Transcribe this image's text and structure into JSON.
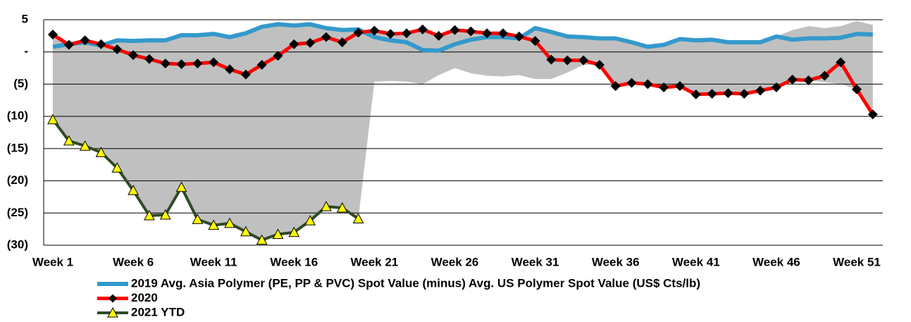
{
  "chart_data": {
    "type": "line",
    "categories": [
      "Week 1",
      null,
      null,
      null,
      null,
      "Week 6",
      null,
      null,
      null,
      null,
      "Week 11",
      null,
      null,
      null,
      null,
      "Week 16",
      null,
      null,
      null,
      null,
      "Week 21",
      null,
      null,
      null,
      null,
      "Week 26",
      null,
      null,
      null,
      null,
      "Week 31",
      null,
      null,
      null,
      null,
      "Week 36",
      null,
      null,
      null,
      null,
      "Week 41",
      null,
      null,
      null,
      null,
      "Week 46",
      null,
      null,
      null,
      null,
      "Week 51",
      null
    ],
    "ylim": [
      -30,
      5
    ],
    "yticks": [
      {
        "value": 5,
        "label": "5"
      },
      {
        "value": 0,
        "label": "-"
      },
      {
        "value": -5,
        "label": "(5)"
      },
      {
        "value": -10,
        "label": "(10)"
      },
      {
        "value": -15,
        "label": "(15)"
      },
      {
        "value": -20,
        "label": "(20)"
      },
      {
        "value": -25,
        "label": "(25)"
      },
      {
        "value": -30,
        "label": "(30)"
      }
    ],
    "grid": true,
    "band": {
      "color": "#c0c0c0",
      "low": [
        -10.5,
        -13.8,
        -14.6,
        -15.6,
        -18.0,
        -21.5,
        -25.4,
        -25.3,
        -21.0,
        -26.0,
        -26.9,
        -26.6,
        -27.9,
        -29.2,
        -28.3,
        -28.0,
        -26.2,
        -24.0,
        -24.2,
        -25.9,
        -4.6,
        -4.5,
        -4.6,
        -5.0,
        -3.6,
        -2.5,
        -3.3,
        -3.7,
        -3.8,
        -3.6,
        -4.2,
        -4.2,
        -3.2,
        -2.0,
        -2.0,
        -5.3,
        -4.8,
        -5.0,
        -5.5,
        -5.3,
        -6.6,
        -6.5,
        -6.4,
        -6.5,
        -6.0,
        -5.5,
        -4.3,
        -4.4,
        -4.7,
        -5.0,
        -5.8,
        -9.7
      ],
      "high": [
        2.7,
        1.5,
        1.8,
        1.2,
        1.8,
        1.7,
        1.8,
        1.8,
        2.6,
        2.6,
        2.8,
        2.3,
        2.9,
        3.9,
        4.3,
        4.1,
        4.3,
        3.7,
        3.4,
        3.5,
        3.3,
        2.8,
        2.9,
        3.5,
        2.5,
        3.4,
        3.2,
        2.9,
        2.9,
        2.4,
        3.7,
        3.1,
        2.4,
        2.3,
        2.1,
        2.1,
        1.5,
        0.8,
        1.1,
        2.0,
        1.8,
        1.9,
        1.5,
        1.5,
        1.5,
        2.4,
        3.4,
        4.0,
        3.7,
        4.0,
        4.8,
        4.2
      ]
    },
    "series": [
      {
        "name": "2019 Avg. Asia Polymer (PE, PP & PVC) Spot Value (minus) Avg. US Polymer Spot Value (US$ Cts/lb)",
        "color": "#3399cc",
        "marker": null,
        "values": [
          0.8,
          1.2,
          1.5,
          1.0,
          1.8,
          1.7,
          1.8,
          1.8,
          2.6,
          2.6,
          2.8,
          2.3,
          2.9,
          3.9,
          4.3,
          4.1,
          4.3,
          3.7,
          3.4,
          3.5,
          2.3,
          1.8,
          1.5,
          0.3,
          0.2,
          1.2,
          1.9,
          2.3,
          2.3,
          2.1,
          3.7,
          3.1,
          2.4,
          2.3,
          2.1,
          2.1,
          1.5,
          0.8,
          1.1,
          2.0,
          1.8,
          1.9,
          1.5,
          1.5,
          1.5,
          2.4,
          1.9,
          2.1,
          2.1,
          2.2,
          2.8,
          2.7
        ]
      },
      {
        "name": "2020",
        "color": "#ff0000",
        "marker": "diamond",
        "marker_color": "#000000",
        "values": [
          2.7,
          1.1,
          1.8,
          1.2,
          0.4,
          -0.5,
          -1.1,
          -1.8,
          -1.9,
          -1.8,
          -1.6,
          -2.7,
          -3.5,
          -2.0,
          -0.6,
          1.2,
          1.4,
          2.3,
          1.5,
          3.0,
          3.3,
          2.8,
          2.9,
          3.5,
          2.5,
          3.4,
          3.2,
          2.9,
          2.9,
          2.4,
          1.7,
          -1.2,
          -1.3,
          -1.3,
          -2.0,
          -5.3,
          -4.8,
          -5.0,
          -5.5,
          -5.3,
          -6.6,
          -6.5,
          -6.4,
          -6.5,
          -6.0,
          -5.5,
          -4.3,
          -4.4,
          -3.7,
          -1.6,
          -5.8,
          -9.7
        ]
      },
      {
        "name": "2021 YTD",
        "color": "#2f4a25",
        "marker": "triangle",
        "marker_color": "#ffff00",
        "values": [
          -10.5,
          -13.8,
          -14.6,
          -15.6,
          -18.0,
          -21.5,
          -25.4,
          -25.3,
          -21.0,
          -26.0,
          -26.9,
          -26.6,
          -27.9,
          -29.2,
          -28.3,
          -28.0,
          -26.2,
          -24.0,
          -24.2,
          -25.9,
          null,
          null,
          null,
          null,
          null,
          null,
          null,
          null,
          null,
          null,
          null,
          null,
          null,
          null,
          null,
          null,
          null,
          null,
          null,
          null,
          null,
          null,
          null,
          null,
          null,
          null,
          null,
          null,
          null,
          null,
          null,
          null
        ]
      }
    ]
  }
}
